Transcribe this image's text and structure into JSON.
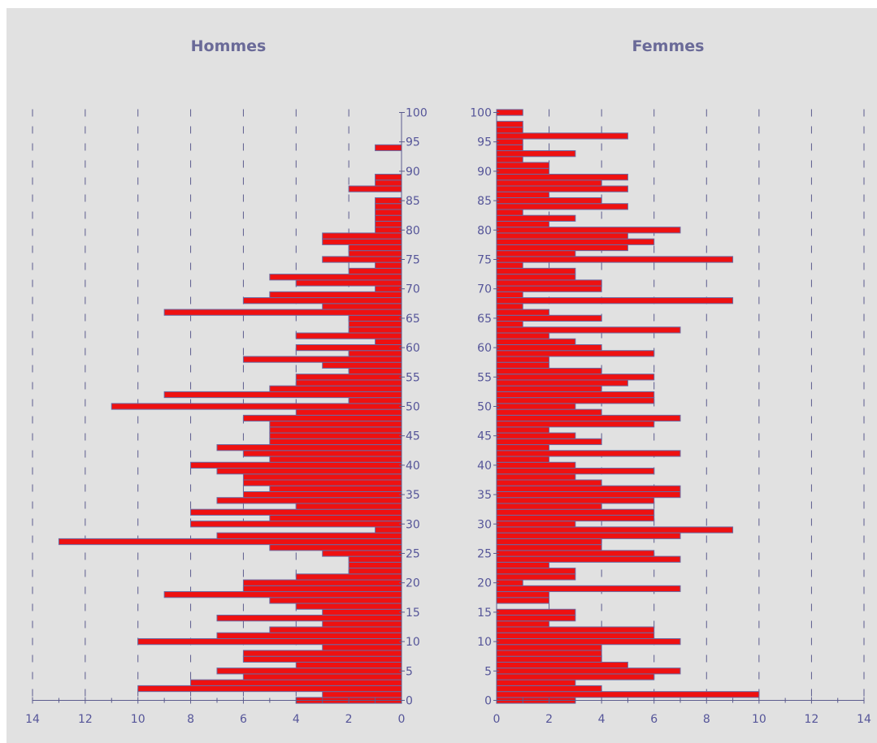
{
  "chart_data": [
    {
      "type": "bar",
      "orientation": "horizontal",
      "title": "Hommes",
      "xlim": [
        0,
        14
      ],
      "x_direction": "reversed",
      "x_ticks": [
        "14",
        "12",
        "10",
        "8",
        "6",
        "4",
        "2",
        "0"
      ],
      "ylim": [
        0,
        100
      ],
      "y_ticks": [
        "0",
        "5",
        "10",
        "15",
        "20",
        "25",
        "30",
        "35",
        "40",
        "45",
        "50",
        "55",
        "60",
        "65",
        "70",
        "75",
        "80",
        "85",
        "90",
        "95",
        "100"
      ],
      "grid": true,
      "color": "#ee1111",
      "ages": [
        0,
        1,
        2,
        3,
        4,
        5,
        6,
        7,
        8,
        9,
        10,
        11,
        12,
        13,
        14,
        15,
        16,
        17,
        18,
        19,
        20,
        21,
        22,
        23,
        24,
        25,
        26,
        27,
        28,
        29,
        30,
        31,
        32,
        33,
        34,
        35,
        36,
        37,
        38,
        39,
        40,
        41,
        42,
        43,
        44,
        45,
        46,
        47,
        48,
        49,
        50,
        51,
        52,
        53,
        54,
        55,
        56,
        57,
        58,
        59,
        60,
        61,
        62,
        63,
        64,
        65,
        66,
        67,
        68,
        69,
        70,
        71,
        72,
        73,
        74,
        75,
        76,
        77,
        78,
        79,
        80,
        81,
        82,
        83,
        84,
        85,
        86,
        87,
        88,
        89,
        90,
        91,
        92,
        93,
        94,
        95,
        96,
        97,
        98,
        99,
        100
      ],
      "values": [
        4,
        3,
        10,
        8,
        6,
        7,
        4,
        6,
        6,
        3,
        10,
        7,
        5,
        3,
        7,
        3,
        4,
        5,
        9,
        6,
        6,
        4,
        2,
        2,
        2,
        3,
        5,
        13,
        7,
        1,
        8,
        5,
        8,
        4,
        7,
        6,
        5,
        6,
        6,
        7,
        8,
        5,
        6,
        7,
        5,
        5,
        5,
        5,
        6,
        4,
        11,
        2,
        9,
        5,
        4,
        4,
        2,
        3,
        6,
        2,
        4,
        1,
        4,
        2,
        2,
        2,
        9,
        3,
        6,
        5,
        1,
        4,
        5,
        2,
        1,
        3,
        2,
        2,
        3,
        3,
        1,
        1,
        1,
        1,
        1,
        1,
        0,
        2,
        1,
        1,
        0,
        0,
        0,
        0,
        1,
        0,
        0,
        0,
        0,
        0
      ]
    },
    {
      "type": "bar",
      "orientation": "horizontal",
      "title": "Femmes",
      "xlim": [
        0,
        14
      ],
      "x_ticks": [
        "0",
        "2",
        "4",
        "6",
        "8",
        "10",
        "12",
        "14"
      ],
      "ylim": [
        0,
        100
      ],
      "y_ticks": [
        "0",
        "5",
        "10",
        "15",
        "20",
        "25",
        "30",
        "35",
        "40",
        "45",
        "50",
        "55",
        "60",
        "65",
        "70",
        "75",
        "80",
        "85",
        "90",
        "95",
        "100"
      ],
      "grid": true,
      "color": "#ee1111",
      "ages": [
        0,
        1,
        2,
        3,
        4,
        5,
        6,
        7,
        8,
        9,
        10,
        11,
        12,
        13,
        14,
        15,
        16,
        17,
        18,
        19,
        20,
        21,
        22,
        23,
        24,
        25,
        26,
        27,
        28,
        29,
        30,
        31,
        32,
        33,
        34,
        35,
        36,
        37,
        38,
        39,
        40,
        41,
        42,
        43,
        44,
        45,
        46,
        47,
        48,
        49,
        50,
        51,
        52,
        53,
        54,
        55,
        56,
        57,
        58,
        59,
        60,
        61,
        62,
        63,
        64,
        65,
        66,
        67,
        68,
        69,
        70,
        71,
        72,
        73,
        74,
        75,
        76,
        77,
        78,
        79,
        80,
        81,
        82,
        83,
        84,
        85,
        86,
        87,
        88,
        89,
        90,
        91,
        92,
        93,
        94,
        95,
        96,
        97,
        98,
        99,
        100
      ],
      "values": [
        3,
        10,
        4,
        3,
        6,
        7,
        5,
        4,
        4,
        4,
        7,
        6,
        6,
        2,
        3,
        3,
        0,
        2,
        2,
        7,
        1,
        3,
        3,
        2,
        7,
        6,
        4,
        4,
        7,
        9,
        3,
        6,
        6,
        4,
        6,
        7,
        7,
        4,
        3,
        6,
        3,
        2,
        7,
        2,
        4,
        3,
        2,
        6,
        7,
        4,
        3,
        6,
        6,
        4,
        5,
        6,
        4,
        2,
        2,
        6,
        4,
        3,
        2,
        7,
        1,
        4,
        2,
        1,
        9,
        1,
        4,
        4,
        3,
        3,
        1,
        9,
        3,
        5,
        6,
        5,
        7,
        2,
        3,
        1,
        5,
        4,
        2,
        5,
        4,
        5,
        2,
        2,
        1,
        3,
        1,
        1,
        5,
        1,
        1,
        0,
        1
      ]
    }
  ]
}
